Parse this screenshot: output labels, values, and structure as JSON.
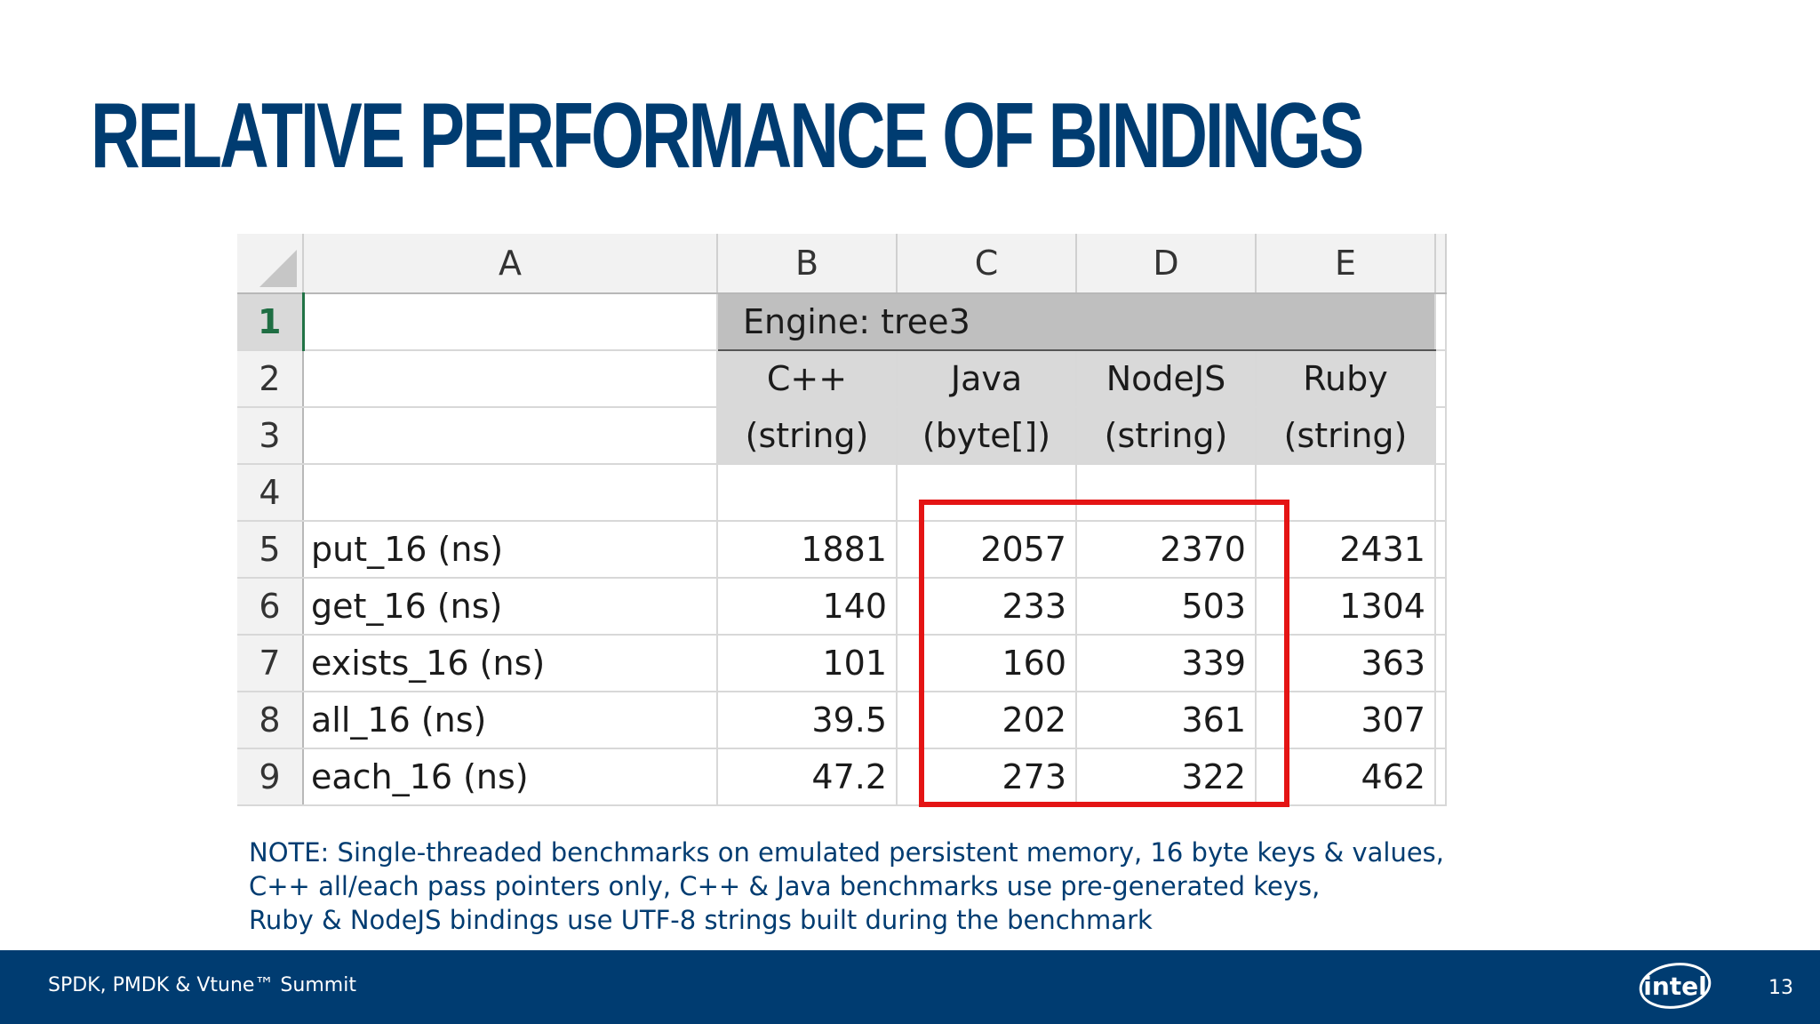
{
  "title": "RELATIVE PERFORMANCE OF BINDINGS",
  "spreadsheet": {
    "columns": [
      "A",
      "B",
      "C",
      "D",
      "E"
    ],
    "row_numbers": [
      "1",
      "2",
      "3",
      "4",
      "5",
      "6",
      "7",
      "8",
      "9"
    ],
    "engine_label": "Engine: tree3",
    "headers_line1": [
      "C++",
      "Java",
      "NodeJS",
      "Ruby"
    ],
    "headers_line2": [
      "(string)",
      "(byte[])",
      "(string)",
      "(string)"
    ],
    "rows": [
      {
        "label": "put_16 (ns)",
        "values": [
          "1881",
          "2057",
          "2370",
          "2431"
        ]
      },
      {
        "label": "get_16 (ns)",
        "values": [
          "140",
          "233",
          "503",
          "1304"
        ]
      },
      {
        "label": "exists_16 (ns)",
        "values": [
          "101",
          "160",
          "339",
          "363"
        ]
      },
      {
        "label": "all_16 (ns)",
        "values": [
          "39.5",
          "202",
          "361",
          "307"
        ]
      },
      {
        "label": "each_16 (ns)",
        "values": [
          "47.2",
          "273",
          "322",
          "462"
        ]
      }
    ],
    "highlight_color": "#e41414"
  },
  "note": {
    "line1": "NOTE:  Single-threaded benchmarks on emulated persistent memory, 16 byte keys & values,",
    "line2": "C++ all/each pass pointers only, C++ & Java benchmarks use pre-generated keys,",
    "line3": "Ruby & NodeJS bindings use UTF-8 strings built during the benchmark"
  },
  "footer": {
    "event": "SPDK, PMDK & Vtune™ Summit",
    "logo_text": "intel",
    "page_number": "13",
    "bar_color": "#003c71"
  }
}
